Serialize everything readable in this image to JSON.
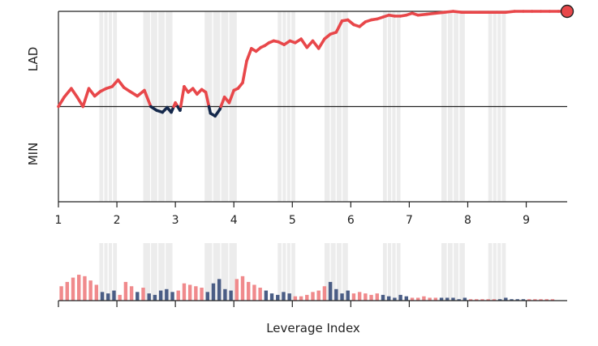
{
  "chart_data": [
    {
      "type": "line",
      "title": "",
      "xlabel": "",
      "ylabel_top": "LAD",
      "ylabel_bottom": "MIN",
      "xlim": [
        1,
        9.7
      ],
      "ylim": [
        -1,
        1
      ],
      "xticks": [
        1,
        2,
        3,
        4,
        5,
        6,
        7,
        8,
        9
      ],
      "grid": false,
      "shaded_intervals": [
        [
          1.7,
          2.0
        ],
        [
          2.45,
          2.95
        ],
        [
          3.5,
          4.05
        ],
        [
          4.75,
          5.05
        ],
        [
          5.55,
          5.95
        ],
        [
          6.55,
          6.85
        ],
        [
          7.55,
          7.95
        ],
        [
          8.35,
          8.65
        ]
      ],
      "colors": {
        "positive": "#e8474a",
        "negative": "#14284b",
        "band": "#ececec",
        "marker": "#e8474a"
      },
      "series": [
        {
          "x": [
            1.0,
            1.1,
            1.22,
            1.32,
            1.42,
            1.52,
            1.62,
            1.72,
            1.82,
            1.92,
            2.02,
            2.12,
            2.22,
            2.35,
            2.47,
            2.58,
            2.68,
            2.78,
            2.86,
            2.93,
            3.0,
            3.08,
            3.15,
            3.22,
            3.3,
            3.37,
            3.45,
            3.52,
            3.6,
            3.68,
            3.76,
            3.84,
            3.92,
            4.0,
            4.07,
            4.15,
            4.22,
            4.3,
            4.38,
            4.46,
            4.53,
            4.6,
            4.68,
            4.76,
            4.86,
            4.96,
            5.05,
            5.15,
            5.25,
            5.35,
            5.45,
            5.55,
            5.65,
            5.75,
            5.85,
            5.95,
            6.05,
            6.15,
            6.25,
            6.35,
            6.45,
            6.55,
            6.65,
            6.75,
            6.85,
            6.95,
            7.05,
            7.15,
            7.3,
            7.45,
            7.6,
            7.75,
            7.9,
            8.05,
            8.2,
            8.35,
            8.5,
            8.65,
            8.8,
            8.95,
            9.1,
            9.25,
            9.4,
            9.55,
            9.7
          ],
          "y": [
            0.0,
            0.1,
            0.19,
            0.1,
            0.0,
            0.19,
            0.11,
            0.16,
            0.19,
            0.21,
            0.28,
            0.2,
            0.16,
            0.11,
            0.17,
            0.0,
            -0.04,
            -0.06,
            -0.01,
            -0.06,
            0.04,
            -0.04,
            0.21,
            0.15,
            0.19,
            0.13,
            0.18,
            0.15,
            -0.07,
            -0.1,
            -0.03,
            0.1,
            0.04,
            0.17,
            0.19,
            0.25,
            0.48,
            0.61,
            0.58,
            0.62,
            0.64,
            0.67,
            0.69,
            0.68,
            0.65,
            0.69,
            0.67,
            0.71,
            0.62,
            0.69,
            0.61,
            0.71,
            0.76,
            0.78,
            0.9,
            0.91,
            0.86,
            0.84,
            0.89,
            0.91,
            0.92,
            0.94,
            0.96,
            0.95,
            0.95,
            0.96,
            0.98,
            0.96,
            0.97,
            0.98,
            0.99,
            1.0,
            0.99,
            0.99,
            0.99,
            0.99,
            0.99,
            0.99,
            1.0,
            1.0,
            1.0,
            1.0,
            1.0,
            1.0,
            1.0
          ]
        }
      ]
    },
    {
      "type": "bar",
      "title": "",
      "xlabel": "Leverage Index",
      "ylabel": "",
      "xlim": [
        1,
        9.7
      ],
      "ylim": [
        0,
        0.4
      ],
      "xticks": [
        1,
        2,
        3,
        4,
        5,
        6,
        7,
        8,
        9
      ],
      "grid": false,
      "shaded_intervals": [
        [
          1.7,
          2.0
        ],
        [
          2.45,
          2.95
        ],
        [
          3.5,
          4.05
        ],
        [
          4.75,
          5.05
        ],
        [
          5.55,
          5.95
        ],
        [
          6.55,
          6.85
        ],
        [
          7.55,
          7.95
        ],
        [
          8.35,
          8.65
        ]
      ],
      "colors": {
        "positive": "#f08a8c",
        "negative": "#4a5d85",
        "band": "#ececec"
      },
      "series": [
        {
          "x": [
            1.05,
            1.15,
            1.25,
            1.35,
            1.45,
            1.55,
            1.65,
            1.75,
            1.85,
            1.95,
            2.05,
            2.15,
            2.25,
            2.35,
            2.45,
            2.55,
            2.65,
            2.75,
            2.85,
            2.95,
            3.05,
            3.15,
            3.25,
            3.35,
            3.45,
            3.55,
            3.65,
            3.75,
            3.85,
            3.95,
            4.05,
            4.15,
            4.25,
            4.35,
            4.45,
            4.55,
            4.65,
            4.75,
            4.85,
            4.95,
            5.05,
            5.15,
            5.25,
            5.35,
            5.45,
            5.55,
            5.65,
            5.75,
            5.85,
            5.95,
            6.05,
            6.15,
            6.25,
            6.35,
            6.45,
            6.55,
            6.65,
            6.75,
            6.85,
            6.95,
            7.05,
            7.15,
            7.25,
            7.35,
            7.45,
            7.55,
            7.65,
            7.75,
            7.85,
            7.95,
            8.05,
            8.15,
            8.25,
            8.35,
            8.45,
            8.55,
            8.65,
            8.75,
            8.85,
            8.95,
            9.05,
            9.15,
            9.25,
            9.35,
            9.45
          ],
          "values": [
            0.1,
            0.13,
            0.16,
            0.18,
            0.17,
            0.14,
            0.11,
            0.06,
            0.05,
            0.07,
            0.04,
            0.13,
            0.1,
            0.06,
            0.09,
            0.05,
            0.04,
            0.07,
            0.08,
            0.06,
            0.07,
            0.12,
            0.11,
            0.1,
            0.09,
            0.06,
            0.12,
            0.15,
            0.08,
            0.07,
            0.15,
            0.17,
            0.13,
            0.11,
            0.09,
            0.07,
            0.05,
            0.04,
            0.06,
            0.05,
            0.03,
            0.03,
            0.04,
            0.06,
            0.07,
            0.1,
            0.13,
            0.08,
            0.05,
            0.07,
            0.05,
            0.06,
            0.05,
            0.04,
            0.05,
            0.04,
            0.03,
            0.02,
            0.04,
            0.03,
            0.02,
            0.02,
            0.03,
            0.02,
            0.02,
            0.02,
            0.02,
            0.02,
            0.01,
            0.02,
            0.01,
            0.01,
            0.01,
            0.01,
            0.01,
            0.01,
            0.02,
            0.01,
            0.01,
            0.01,
            0.01,
            0.01,
            0.01,
            0.01,
            0.01
          ],
          "signs": [
            "+",
            "+",
            "+",
            "+",
            "+",
            "+",
            "+",
            "-",
            "-",
            "-",
            "+",
            "+",
            "+",
            "-",
            "+",
            "-",
            "-",
            "-",
            "-",
            "-",
            "+",
            "+",
            "+",
            "+",
            "+",
            "-",
            "-",
            "-",
            "-",
            "-",
            "+",
            "+",
            "+",
            "+",
            "+",
            "-",
            "-",
            "-",
            "-",
            "-",
            "+",
            "+",
            "+",
            "+",
            "+",
            "+",
            "-",
            "-",
            "-",
            "-",
            "+",
            "+",
            "+",
            "+",
            "+",
            "-",
            "-",
            "-",
            "-",
            "-",
            "+",
            "+",
            "+",
            "+",
            "+",
            "-",
            "-",
            "-",
            "-",
            "-",
            "+",
            "+",
            "+",
            "+",
            "+",
            "-",
            "-",
            "-",
            "-",
            "-",
            "+",
            "+",
            "+",
            "+",
            "+"
          ]
        }
      ]
    }
  ]
}
